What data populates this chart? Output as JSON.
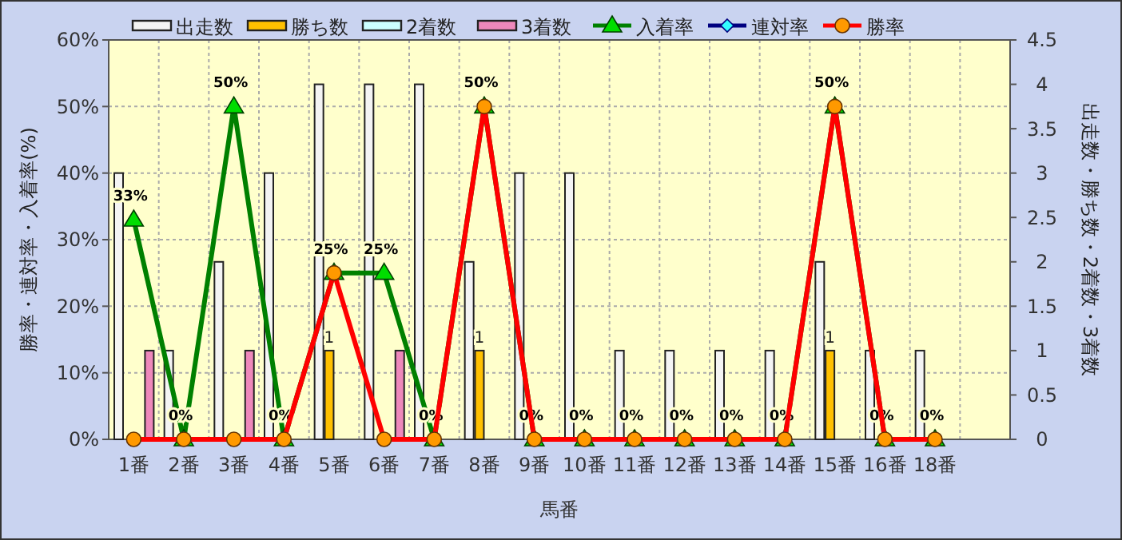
{
  "chart_data": {
    "type": "bar",
    "xlabel": "馬番",
    "ylabel": "勝率・連対率・入着率(%)",
    "y2label": "出走数・勝ち数・2着数・3着数",
    "categories": [
      "1番",
      "2番",
      "3番",
      "4番",
      "5番",
      "6番",
      "7番",
      "8番",
      "9番",
      "10番",
      "11番",
      "12番",
      "13番",
      "14番",
      "15番",
      "16番",
      "18番",
      null
    ],
    "series": [
      {
        "name": "出走数",
        "axis": "y2",
        "color": "#f4f4f4",
        "values": [
          3,
          1,
          2,
          3,
          4,
          4,
          4,
          2,
          3,
          3,
          1,
          1,
          1,
          1,
          2,
          1,
          1,
          null
        ]
      },
      {
        "name": "勝ち数",
        "axis": "y2",
        "color": "#ffc000",
        "values": [
          0,
          0,
          0,
          0,
          1,
          0,
          0,
          1,
          0,
          0,
          0,
          0,
          0,
          0,
          1,
          0,
          0,
          null
        ],
        "value_labels": [
          null,
          null,
          null,
          null,
          "1",
          null,
          null,
          "1",
          null,
          null,
          null,
          null,
          null,
          null,
          "1",
          null,
          null,
          null
        ]
      },
      {
        "name": "2着数",
        "axis": "y2",
        "color": "#ccffff",
        "values": [
          0,
          0,
          0,
          0,
          0,
          0,
          0,
          0,
          0,
          0,
          0,
          0,
          0,
          0,
          0,
          0,
          0,
          null
        ]
      },
      {
        "name": "3着数",
        "axis": "y2",
        "color": "#ee88bb",
        "values": [
          1,
          0,
          1,
          0,
          0,
          1,
          0,
          0,
          0,
          0,
          0,
          0,
          0,
          0,
          0,
          0,
          0,
          null
        ]
      },
      {
        "name": "入着率",
        "type": "line",
        "axis": "y",
        "color": "#008000",
        "marker": "triangle",
        "values": [
          33,
          0,
          50,
          0,
          25,
          25,
          0,
          50,
          0,
          0,
          0,
          0,
          0,
          0,
          50,
          0,
          0,
          null
        ],
        "value_labels": [
          "33%",
          "0%",
          "50%",
          "0%",
          "25%",
          "25%",
          "0%",
          "50%",
          "0%",
          "0%",
          "0%",
          "0%",
          "0%",
          "0%",
          "50%",
          "0%",
          "0%",
          null
        ]
      },
      {
        "name": "連対率",
        "type": "line",
        "axis": "y",
        "color": "#000080",
        "marker": "diamond",
        "values": [
          null,
          null,
          null,
          null,
          null,
          null,
          null,
          null,
          null,
          null,
          null,
          null,
          null,
          null,
          null,
          null,
          null,
          null
        ]
      },
      {
        "name": "勝率",
        "type": "line",
        "axis": "y",
        "color": "#ff0000",
        "marker": "circle",
        "values": [
          0,
          0,
          0,
          0,
          25,
          0,
          0,
          50,
          0,
          0,
          0,
          0,
          0,
          0,
          50,
          0,
          0,
          null
        ]
      }
    ],
    "ylim": [
      0,
      60
    ],
    "yticks": [
      {
        "value": 0,
        "label": "0%"
      },
      {
        "value": 10,
        "label": "10%"
      },
      {
        "value": 20,
        "label": "20%"
      },
      {
        "value": 30,
        "label": "30%"
      },
      {
        "value": 40,
        "label": "40%"
      },
      {
        "value": 50,
        "label": "50%"
      },
      {
        "value": 60,
        "label": "60%"
      }
    ],
    "y2lim": [
      0,
      4.5
    ],
    "y2ticks": [
      0,
      0.5,
      1,
      1.5,
      2,
      2.5,
      3,
      3.5,
      4,
      4.5
    ],
    "grid": true,
    "legend": "top"
  }
}
